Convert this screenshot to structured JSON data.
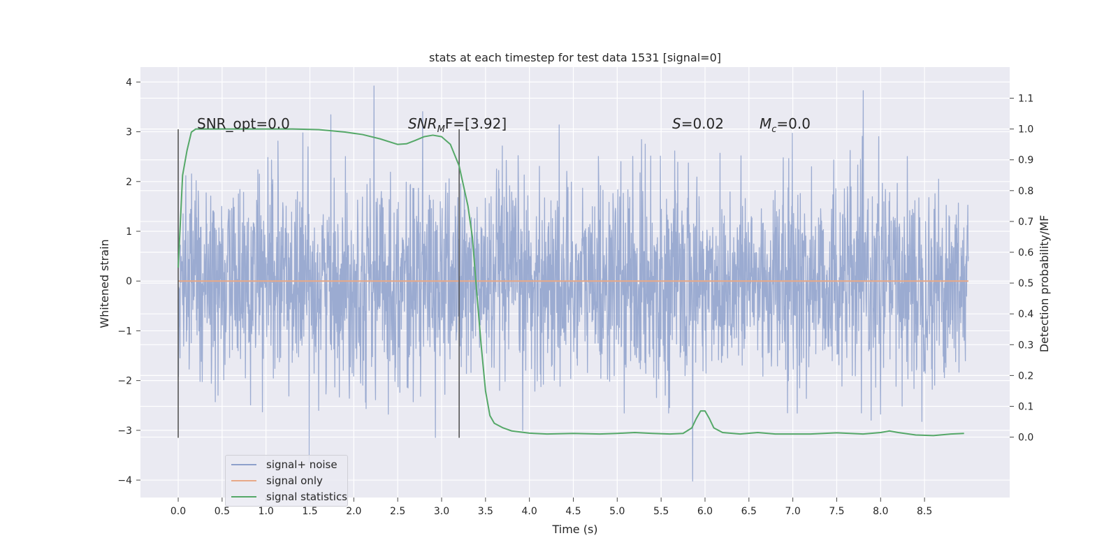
{
  "chart_data": {
    "type": "line",
    "title": "stats at each timestep for test data 1531 [signal=0]",
    "xlabel": "Time (s)",
    "ylabel": "Whitened strain",
    "y2label": "Detection probability/MF",
    "xlim": [
      -0.43,
      9.47
    ],
    "ylim": [
      -4.35,
      4.3
    ],
    "y2lim": [
      -0.196,
      1.201
    ],
    "xticks": [
      "0.0",
      "0.5",
      "1.0",
      "1.5",
      "2.0",
      "2.5",
      "3.0",
      "3.5",
      "4.0",
      "4.5",
      "5.0",
      "5.5",
      "6.0",
      "6.5",
      "7.0",
      "7.5",
      "8.0",
      "8.5"
    ],
    "yticks": [
      "4",
      "3",
      "2",
      "1",
      "0",
      "−1",
      "−2",
      "−3",
      "−4"
    ],
    "y2ticks": [
      "1.1",
      "1.0",
      "0.9",
      "0.8",
      "0.7",
      "0.6",
      "0.5",
      "0.4",
      "0.3",
      "0.2",
      "0.1",
      "0.0"
    ],
    "grid": true,
    "legend_position": "lower-left",
    "annotations": {
      "snr_opt": "SNR_opt=0.0",
      "snr_mf_prefix": "SNR",
      "snr_mf_sub": "M",
      "snr_mf_suffix": "F=[3.92]",
      "s_var": "S",
      "s_val": "=0.02",
      "mc_var": "M",
      "mc_sub": "c",
      "mc_val": "=0.0"
    },
    "vertical_markers": [
      0.0,
      3.2
    ],
    "series": [
      {
        "name": "signal+ noise",
        "color": "#8da0cb",
        "axis": "left",
        "kind": "noise",
        "x_range": [
          0.0,
          9.0
        ],
        "std": 1.0,
        "peak_max": 3.92,
        "peak_min": -4.02
      },
      {
        "name": "signal only",
        "color": "#e8a988",
        "axis": "left",
        "kind": "constant",
        "value": 0.0
      },
      {
        "name": "signal statistics",
        "color": "#55a868",
        "axis": "right",
        "x": [
          0.0,
          0.05,
          0.1,
          0.15,
          0.2,
          0.3,
          0.5,
          0.8,
          1.0,
          1.3,
          1.6,
          1.9,
          2.1,
          2.3,
          2.5,
          2.6,
          2.7,
          2.8,
          2.9,
          3.0,
          3.1,
          3.2,
          3.3,
          3.35,
          3.4,
          3.45,
          3.5,
          3.55,
          3.6,
          3.7,
          3.8,
          4.0,
          4.2,
          4.5,
          4.8,
          5.0,
          5.2,
          5.4,
          5.6,
          5.75,
          5.85,
          5.9,
          5.95,
          6.0,
          6.05,
          6.1,
          6.2,
          6.4,
          6.6,
          6.8,
          7.0,
          7.2,
          7.5,
          7.8,
          8.0,
          8.1,
          8.2,
          8.4,
          8.6,
          8.8,
          8.95
        ],
        "y": [
          0.55,
          0.85,
          0.93,
          0.99,
          1.0,
          1.0,
          1.0,
          1.0,
          1.0,
          1.0,
          0.998,
          0.99,
          0.982,
          0.968,
          0.95,
          0.952,
          0.963,
          0.975,
          0.98,
          0.975,
          0.95,
          0.88,
          0.75,
          0.65,
          0.47,
          0.3,
          0.15,
          0.07,
          0.045,
          0.03,
          0.02,
          0.013,
          0.01,
          0.012,
          0.01,
          0.012,
          0.015,
          0.012,
          0.01,
          0.012,
          0.03,
          0.06,
          0.085,
          0.085,
          0.06,
          0.03,
          0.015,
          0.01,
          0.015,
          0.01,
          0.01,
          0.01,
          0.014,
          0.01,
          0.015,
          0.02,
          0.015,
          0.007,
          0.005,
          0.01,
          0.012
        ]
      }
    ]
  }
}
